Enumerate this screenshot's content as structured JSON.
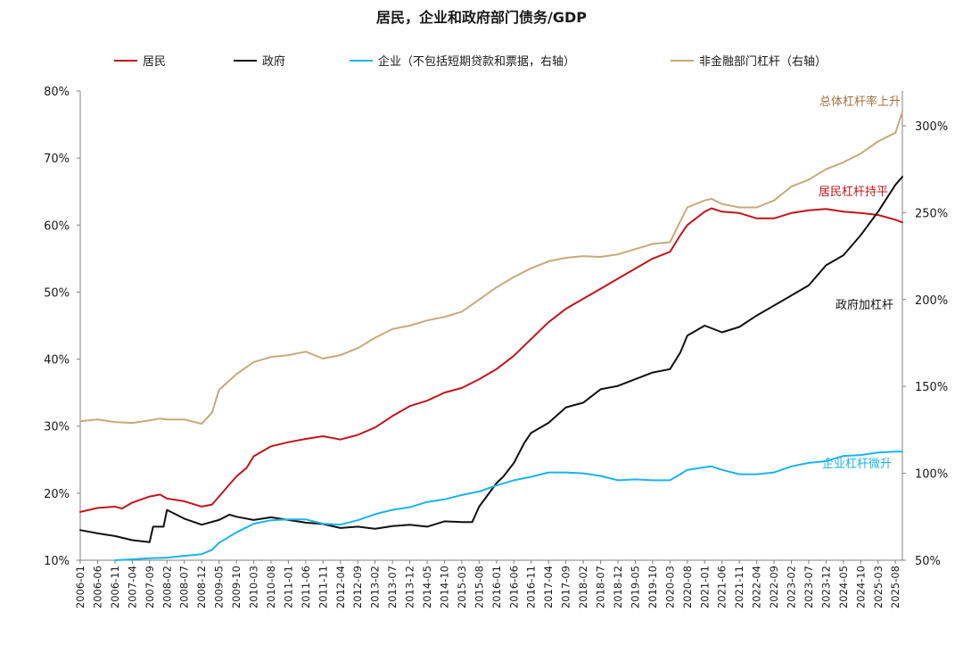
{
  "chart_data": {
    "type": "line",
    "title": "居民，企业和政府部门债务/GDP",
    "x_start": "2006-01",
    "x_end": "2025-10",
    "x_tick_labels": [
      "2006-01",
      "2006-06",
      "2006-11",
      "2007-04",
      "2007-09",
      "2008-02",
      "2008-07",
      "2008-12",
      "2009-05",
      "2009-10",
      "2010-03",
      "2010-08",
      "2011-01",
      "2011-06",
      "2011-11",
      "2012-04",
      "2012-09",
      "2013-02",
      "2013-07",
      "2013-12",
      "2014-05",
      "2014-10",
      "2015-03",
      "2015-08",
      "2016-01",
      "2016-06",
      "2016-11",
      "2017-04",
      "2017-09",
      "2018-02",
      "2018-07",
      "2018-12",
      "2019-05",
      "2019-10",
      "2020-03",
      "2020-08",
      "2021-01",
      "2021-06",
      "2021-11",
      "2022-04",
      "2022-09",
      "2023-02",
      "2023-07",
      "2023-12",
      "2024-05",
      "2024-10",
      "2025-03",
      "2025-08"
    ],
    "y_left": {
      "min": 10,
      "max": 80,
      "ticks": [
        "10%",
        "20%",
        "30%",
        "40%",
        "50%",
        "60%",
        "70%",
        "80%"
      ]
    },
    "y_right": {
      "min": 50,
      "max": 320,
      "ticks": [
        "50%",
        "100%",
        "150%",
        "200%",
        "250%",
        "300%"
      ]
    },
    "grid": false,
    "legend_position": "top",
    "series": [
      {
        "name": "居民",
        "axis": "left",
        "color": "#c0161d",
        "points": [
          [
            "2006-01",
            17.2
          ],
          [
            "2006-06",
            17.8
          ],
          [
            "2006-11",
            18.0
          ],
          [
            "2007-01",
            17.7
          ],
          [
            "2007-04",
            18.6
          ],
          [
            "2007-09",
            19.5
          ],
          [
            "2007-12",
            19.8
          ],
          [
            "2008-02",
            19.2
          ],
          [
            "2008-07",
            18.8
          ],
          [
            "2008-12",
            18.0
          ],
          [
            "2009-03",
            18.3
          ],
          [
            "2009-05",
            19.5
          ],
          [
            "2009-10",
            22.5
          ],
          [
            "2010-01",
            23.8
          ],
          [
            "2010-03",
            25.5
          ],
          [
            "2010-08",
            27.0
          ],
          [
            "2011-01",
            27.6
          ],
          [
            "2011-06",
            28.1
          ],
          [
            "2011-11",
            28.5
          ],
          [
            "2012-04",
            28.0
          ],
          [
            "2012-09",
            28.7
          ],
          [
            "2013-02",
            29.8
          ],
          [
            "2013-07",
            31.5
          ],
          [
            "2013-12",
            33.0
          ],
          [
            "2014-05",
            33.8
          ],
          [
            "2014-10",
            35.0
          ],
          [
            "2015-03",
            35.7
          ],
          [
            "2015-08",
            37.0
          ],
          [
            "2016-01",
            38.5
          ],
          [
            "2016-06",
            40.5
          ],
          [
            "2016-11",
            43.0
          ],
          [
            "2017-04",
            45.5
          ],
          [
            "2017-09",
            47.5
          ],
          [
            "2018-02",
            49.0
          ],
          [
            "2018-07",
            50.5
          ],
          [
            "2018-12",
            52.0
          ],
          [
            "2019-05",
            53.5
          ],
          [
            "2019-10",
            55.0
          ],
          [
            "2020-03",
            56.0
          ],
          [
            "2020-06",
            58.5
          ],
          [
            "2020-08",
            60.0
          ],
          [
            "2021-01",
            62.0
          ],
          [
            "2021-03",
            62.5
          ],
          [
            "2021-06",
            62.0
          ],
          [
            "2021-11",
            61.8
          ],
          [
            "2022-04",
            61.0
          ],
          [
            "2022-09",
            61.0
          ],
          [
            "2023-02",
            61.8
          ],
          [
            "2023-07",
            62.2
          ],
          [
            "2023-12",
            62.4
          ],
          [
            "2024-05",
            62.0
          ],
          [
            "2024-10",
            61.8
          ],
          [
            "2025-03",
            61.5
          ],
          [
            "2025-08",
            60.8
          ],
          [
            "2025-10",
            60.4
          ]
        ]
      },
      {
        "name": "政府",
        "axis": "left",
        "color": "#111111",
        "points": [
          [
            "2006-01",
            14.5
          ],
          [
            "2006-06",
            14.0
          ],
          [
            "2006-11",
            13.6
          ],
          [
            "2007-04",
            13.0
          ],
          [
            "2007-09",
            12.7
          ],
          [
            "2007-10",
            15.0
          ],
          [
            "2008-01",
            15.0
          ],
          [
            "2008-02",
            17.5
          ],
          [
            "2008-07",
            16.2
          ],
          [
            "2008-12",
            15.3
          ],
          [
            "2009-05",
            16.0
          ],
          [
            "2009-08",
            16.8
          ],
          [
            "2009-10",
            16.5
          ],
          [
            "2010-03",
            16.0
          ],
          [
            "2010-08",
            16.4
          ],
          [
            "2011-01",
            16.0
          ],
          [
            "2011-06",
            15.6
          ],
          [
            "2011-11",
            15.4
          ],
          [
            "2012-04",
            14.8
          ],
          [
            "2012-09",
            15.0
          ],
          [
            "2013-02",
            14.7
          ],
          [
            "2013-07",
            15.1
          ],
          [
            "2013-12",
            15.3
          ],
          [
            "2014-05",
            15.0
          ],
          [
            "2014-10",
            15.8
          ],
          [
            "2015-03",
            15.7
          ],
          [
            "2015-06",
            15.7
          ],
          [
            "2015-08",
            18.0
          ],
          [
            "2016-01",
            21.5
          ],
          [
            "2016-03",
            22.5
          ],
          [
            "2016-06",
            24.5
          ],
          [
            "2016-09",
            27.5
          ],
          [
            "2016-11",
            29.0
          ],
          [
            "2017-04",
            30.5
          ],
          [
            "2017-09",
            32.8
          ],
          [
            "2018-02",
            33.5
          ],
          [
            "2018-07",
            35.5
          ],
          [
            "2018-12",
            36.0
          ],
          [
            "2019-05",
            37.0
          ],
          [
            "2019-10",
            38.0
          ],
          [
            "2020-03",
            38.5
          ],
          [
            "2020-06",
            41.0
          ],
          [
            "2020-08",
            43.5
          ],
          [
            "2021-01",
            45.0
          ],
          [
            "2021-06",
            44.0
          ],
          [
            "2021-11",
            44.8
          ],
          [
            "2022-04",
            46.5
          ],
          [
            "2022-09",
            48.0
          ],
          [
            "2023-02",
            49.5
          ],
          [
            "2023-07",
            51.0
          ],
          [
            "2023-12",
            54.0
          ],
          [
            "2024-05",
            55.5
          ],
          [
            "2024-10",
            58.5
          ],
          [
            "2025-03",
            62.0
          ],
          [
            "2025-08",
            66.0
          ],
          [
            "2025-10",
            67.2
          ]
        ]
      },
      {
        "name": "企业（不包括短期贷款和票据，右轴）",
        "axis": "right",
        "color": "#1bb4e8",
        "points": [
          [
            "2006-11",
            50.0
          ],
          [
            "2007-04",
            50.5
          ],
          [
            "2007-09",
            51.2
          ],
          [
            "2008-02",
            51.5
          ],
          [
            "2008-07",
            52.5
          ],
          [
            "2008-12",
            53.5
          ],
          [
            "2009-03",
            56.0
          ],
          [
            "2009-05",
            60.0
          ],
          [
            "2009-10",
            66.0
          ],
          [
            "2010-03",
            71.0
          ],
          [
            "2010-08",
            73.0
          ],
          [
            "2011-01",
            73.5
          ],
          [
            "2011-06",
            73.5
          ],
          [
            "2011-11",
            71.0
          ],
          [
            "2012-04",
            70.5
          ],
          [
            "2012-09",
            73.0
          ],
          [
            "2013-02",
            76.5
          ],
          [
            "2013-07",
            79.0
          ],
          [
            "2013-12",
            80.5
          ],
          [
            "2014-05",
            83.5
          ],
          [
            "2014-10",
            85.0
          ],
          [
            "2015-03",
            87.5
          ],
          [
            "2015-08",
            89.5
          ],
          [
            "2016-01",
            93.0
          ],
          [
            "2016-06",
            96.0
          ],
          [
            "2016-11",
            98.0
          ],
          [
            "2017-04",
            100.5
          ],
          [
            "2017-09",
            100.5
          ],
          [
            "2018-02",
            100.0
          ],
          [
            "2018-07",
            98.5
          ],
          [
            "2018-12",
            96.0
          ],
          [
            "2019-05",
            96.5
          ],
          [
            "2019-10",
            96.0
          ],
          [
            "2020-03",
            96.0
          ],
          [
            "2020-06",
            99.5
          ],
          [
            "2020-08",
            102.0
          ],
          [
            "2021-01",
            103.5
          ],
          [
            "2021-03",
            104.0
          ],
          [
            "2021-06",
            102.0
          ],
          [
            "2021-11",
            99.5
          ],
          [
            "2022-04",
            99.5
          ],
          [
            "2022-09",
            100.5
          ],
          [
            "2023-02",
            104.0
          ],
          [
            "2023-07",
            106.0
          ],
          [
            "2023-12",
            107.0
          ],
          [
            "2024-05",
            110.0
          ],
          [
            "2024-10",
            110.5
          ],
          [
            "2025-03",
            112.0
          ],
          [
            "2025-08",
            112.5
          ],
          [
            "2025-10",
            112.5
          ]
        ]
      },
      {
        "name": "非金融部门杠杆（右轴）",
        "axis": "right",
        "color": "#c8a97a",
        "points": [
          [
            "2006-01",
            130.0
          ],
          [
            "2006-06",
            131.0
          ],
          [
            "2006-11",
            129.5
          ],
          [
            "2007-04",
            129.0
          ],
          [
            "2007-09",
            130.5
          ],
          [
            "2007-12",
            131.5
          ],
          [
            "2008-02",
            131.0
          ],
          [
            "2008-07",
            131.0
          ],
          [
            "2008-12",
            128.5
          ],
          [
            "2009-03",
            135.0
          ],
          [
            "2009-05",
            148.0
          ],
          [
            "2009-10",
            157.0
          ],
          [
            "2010-03",
            164.0
          ],
          [
            "2010-08",
            167.0
          ],
          [
            "2011-01",
            168.0
          ],
          [
            "2011-06",
            170.0
          ],
          [
            "2011-11",
            166.0
          ],
          [
            "2012-04",
            168.0
          ],
          [
            "2012-09",
            172.0
          ],
          [
            "2013-02",
            178.0
          ],
          [
            "2013-07",
            183.0
          ],
          [
            "2013-12",
            185.0
          ],
          [
            "2014-05",
            188.0
          ],
          [
            "2014-10",
            190.0
          ],
          [
            "2015-03",
            193.0
          ],
          [
            "2015-08",
            200.0
          ],
          [
            "2016-01",
            207.0
          ],
          [
            "2016-06",
            213.0
          ],
          [
            "2016-11",
            218.0
          ],
          [
            "2017-04",
            222.0
          ],
          [
            "2017-09",
            224.0
          ],
          [
            "2018-02",
            225.0
          ],
          [
            "2018-07",
            224.5
          ],
          [
            "2018-12",
            226.0
          ],
          [
            "2019-05",
            229.0
          ],
          [
            "2019-10",
            232.0
          ],
          [
            "2020-03",
            233.0
          ],
          [
            "2020-06",
            245.0
          ],
          [
            "2020-08",
            253.0
          ],
          [
            "2021-01",
            257.0
          ],
          [
            "2021-03",
            258.0
          ],
          [
            "2021-06",
            255.0
          ],
          [
            "2021-11",
            253.0
          ],
          [
            "2022-04",
            253.0
          ],
          [
            "2022-09",
            257.0
          ],
          [
            "2023-02",
            265.0
          ],
          [
            "2023-07",
            269.0
          ],
          [
            "2023-12",
            275.0
          ],
          [
            "2024-05",
            279.0
          ],
          [
            "2024-10",
            284.0
          ],
          [
            "2025-03",
            291.0
          ],
          [
            "2025-08",
            296.0
          ],
          [
            "2025-10",
            308.0
          ]
        ]
      }
    ],
    "annotations": [
      {
        "text": "总体杠杆率上升",
        "color": "#a0723f"
      },
      {
        "text": "居民杠杆持平",
        "color": "#c0161d"
      },
      {
        "text": "政府加杠杆",
        "color": "#111111"
      },
      {
        "text": "企业杠杆微升",
        "color": "#1bb4e8"
      }
    ]
  }
}
